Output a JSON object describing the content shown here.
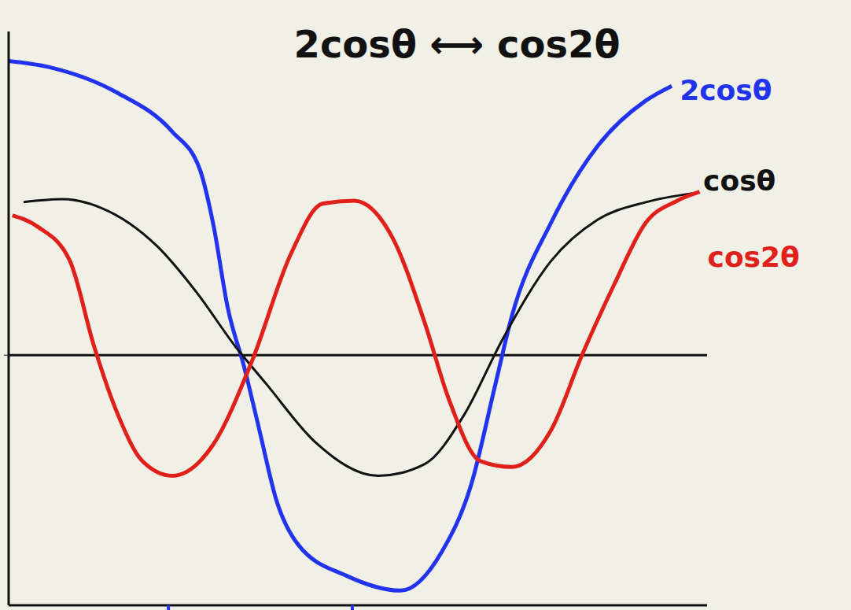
{
  "chart_data": {
    "type": "line",
    "title": "2cosθ ⟷ cos2θ",
    "xlim": [
      -8,
      368
    ],
    "xticks": [
      78,
      177
    ],
    "ylim": [
      -1.7,
      2.2
    ],
    "yticks": [
      0
    ],
    "tick_labels": false,
    "grid": false,
    "series": [
      {
        "name": "2cosθ",
        "color": "#2233ee",
        "x": [
          -8,
          13,
          51,
          80,
          95,
          102,
          110,
          119,
          127,
          136,
          148,
          174,
          203,
          225,
          241,
          254,
          263,
          284,
          309,
          335,
          349
        ],
        "values": [
          2.0,
          1.96,
          1.78,
          1.52,
          1.26,
          0.9,
          0.32,
          -0.09,
          -0.51,
          -0.98,
          -1.29,
          -1.5,
          -1.6,
          -1.34,
          -0.88,
          -0.2,
          0.27,
          0.9,
          1.42,
          1.73,
          1.83
        ]
      },
      {
        "name": "cosθ",
        "color": "#111111",
        "x": [
          0,
          21,
          42,
          72,
          93,
          114,
          131,
          157,
          191,
          216,
          237,
          258,
          284,
          309,
          335,
          360
        ],
        "values": [
          1.04,
          1.06,
          1.0,
          0.74,
          0.43,
          0.06,
          -0.2,
          -0.59,
          -0.82,
          -0.74,
          -0.41,
          0.11,
          0.64,
          0.92,
          1.04,
          1.1
        ]
      },
      {
        "name": "cos2θ",
        "color": "#e0201a",
        "x": [
          -6,
          8,
          25,
          38,
          51,
          64,
          80,
          102,
          123,
          144,
          161,
          178,
          199,
          216,
          229,
          246,
          263,
          284,
          301,
          318,
          335,
          352,
          364
        ],
        "values": [
          0.95,
          0.87,
          0.64,
          0.06,
          -0.41,
          -0.72,
          -0.82,
          -0.61,
          -0.04,
          0.69,
          1.03,
          1.05,
          0.79,
          0.22,
          -0.3,
          -0.72,
          -0.76,
          -0.51,
          0.01,
          0.48,
          0.9,
          1.05,
          1.11
        ]
      }
    ]
  }
}
